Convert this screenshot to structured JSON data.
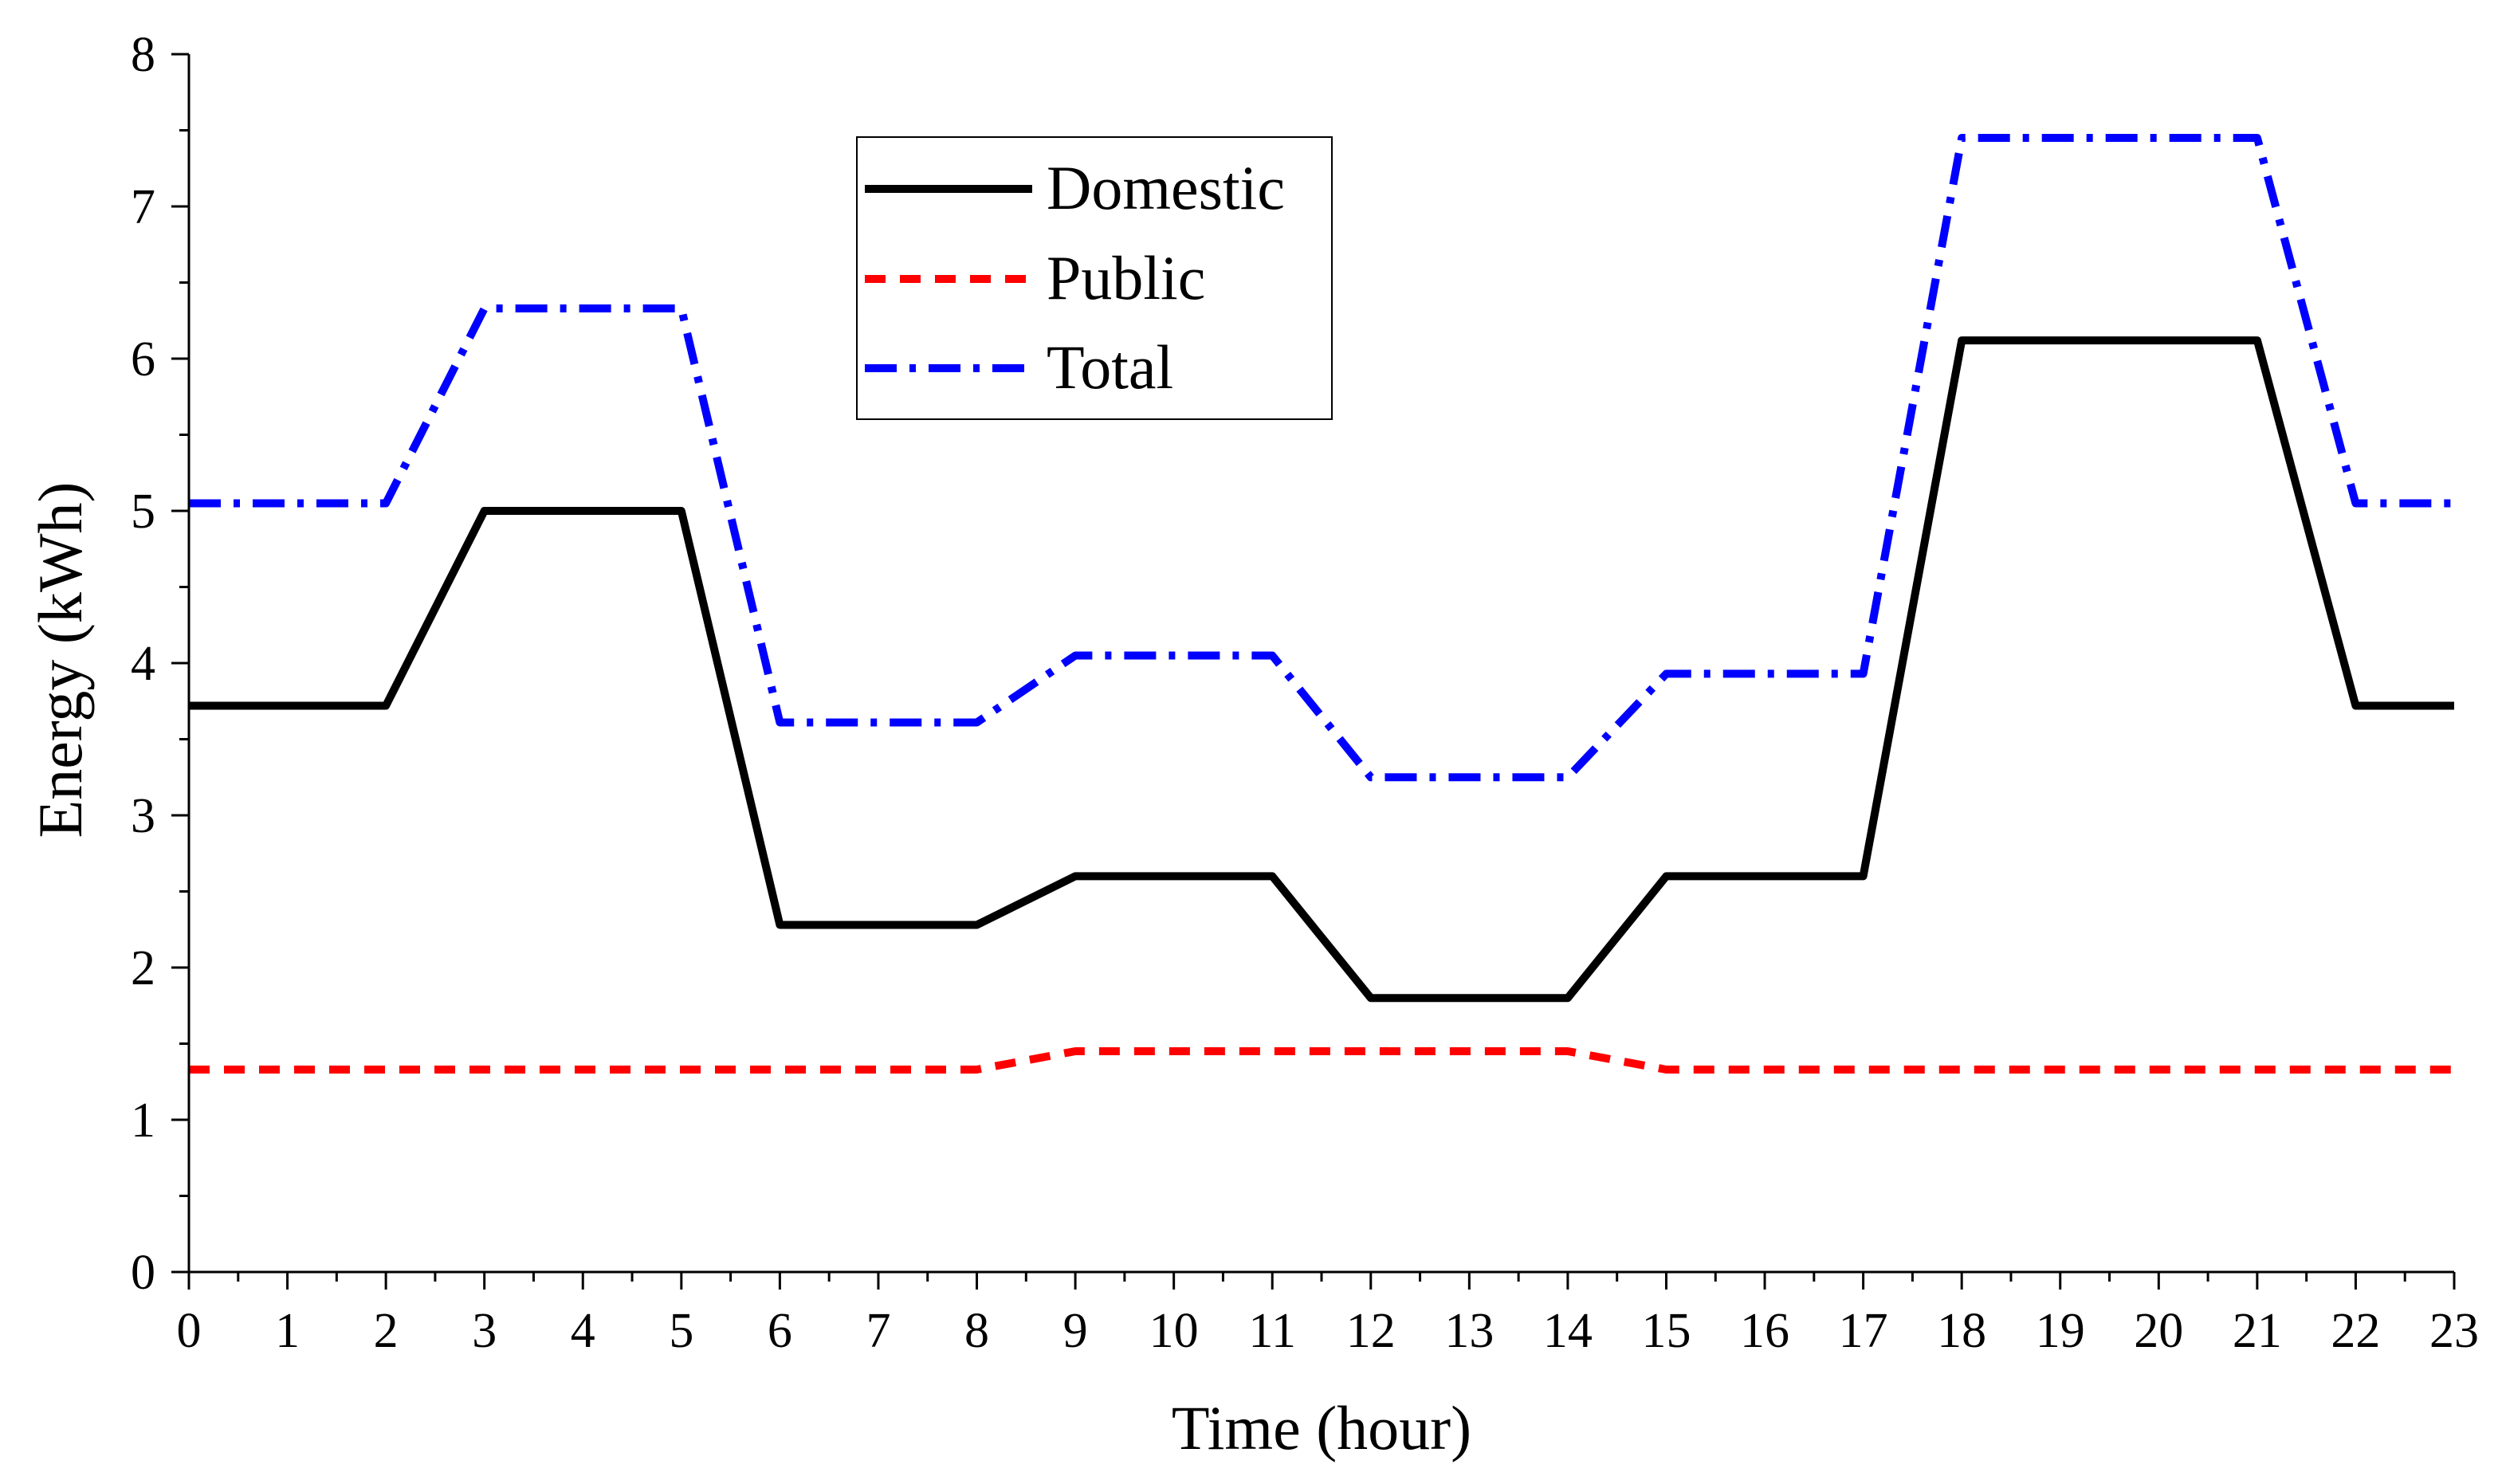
{
  "chart_data": {
    "type": "line",
    "title": "",
    "xlabel": "Time (hour)",
    "ylabel": "Energy (kWh)",
    "xlim": [
      0,
      23
    ],
    "ylim": [
      0,
      8
    ],
    "grid": false,
    "legend_position": "top-center",
    "x": [
      0,
      1,
      2,
      3,
      4,
      5,
      6,
      7,
      8,
      9,
      10,
      11,
      12,
      13,
      14,
      15,
      16,
      17,
      18,
      19,
      20,
      21,
      22,
      23
    ],
    "x_tick_labels": [
      "0",
      "1",
      "2",
      "3",
      "4",
      "5",
      "6",
      "7",
      "8",
      "9",
      "10",
      "11",
      "12",
      "13",
      "14",
      "15",
      "16",
      "17",
      "18",
      "19",
      "20",
      "21",
      "22",
      "23"
    ],
    "y_tick_labels": [
      "0",
      "1",
      "2",
      "3",
      "4",
      "5",
      "6",
      "7",
      "8"
    ],
    "series": [
      {
        "name": "Domestic",
        "color": "#000000",
        "style": "solid",
        "values": [
          3.72,
          3.72,
          3.72,
          5.0,
          5.0,
          5.0,
          2.28,
          2.28,
          2.28,
          2.6,
          2.6,
          2.6,
          1.8,
          1.8,
          1.8,
          2.6,
          2.6,
          2.6,
          6.12,
          6.12,
          6.12,
          6.12,
          3.72,
          3.72
        ]
      },
      {
        "name": "Public",
        "color": "#ff0000",
        "style": "dash",
        "values": [
          1.33,
          1.33,
          1.33,
          1.33,
          1.33,
          1.33,
          1.33,
          1.33,
          1.33,
          1.45,
          1.45,
          1.45,
          1.45,
          1.45,
          1.45,
          1.33,
          1.33,
          1.33,
          1.33,
          1.33,
          1.33,
          1.33,
          1.33,
          1.33
        ]
      },
      {
        "name": "Total",
        "color": "#0000ff",
        "style": "dashdot",
        "values": [
          5.05,
          5.05,
          5.05,
          6.33,
          6.33,
          6.33,
          3.61,
          3.61,
          3.61,
          4.05,
          4.05,
          4.05,
          3.25,
          3.25,
          3.25,
          3.93,
          3.93,
          3.93,
          7.45,
          7.45,
          7.45,
          7.45,
          5.05,
          5.05
        ]
      }
    ]
  }
}
